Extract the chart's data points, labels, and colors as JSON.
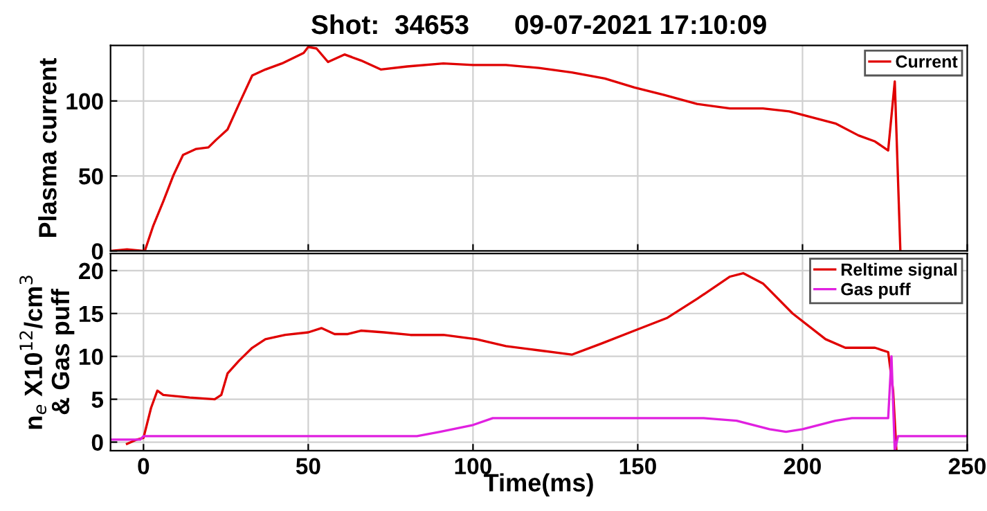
{
  "chart_data": [
    {
      "type": "line",
      "title": "Shot:  34653      09-07-2021 17:10:09",
      "ylabel": "Plasma current",
      "xlim": [
        -10,
        250
      ],
      "xticks": [
        0,
        50,
        100,
        150,
        200,
        250
      ],
      "ylim": [
        0,
        137
      ],
      "yticks": [
        0,
        50,
        100
      ],
      "grid": true,
      "legend": "top right",
      "tick_labels": "y",
      "series": [
        {
          "name": "Current",
          "color": "#e00000",
          "x": [
            -10,
            -5,
            0,
            0.4,
            3,
            6,
            9,
            12,
            16,
            19.7,
            22,
            25.5,
            29,
            33,
            37,
            42,
            48.6,
            50,
            52.5,
            56,
            61,
            66,
            72,
            80,
            91,
            100,
            110,
            120,
            130,
            140,
            149,
            158,
            168,
            178,
            188,
            196,
            203,
            210,
            217,
            222,
            226,
            228,
            229.7
          ],
          "values": [
            0,
            1,
            0,
            0,
            17,
            33,
            50,
            64,
            68,
            69,
            74,
            81,
            98,
            117,
            121,
            125,
            132,
            136,
            135,
            126,
            131,
            127,
            121,
            123,
            125,
            124,
            124,
            122,
            119,
            115,
            109,
            104,
            98,
            95,
            95,
            93,
            89,
            85,
            77,
            73,
            67,
            113,
            0
          ]
        }
      ]
    },
    {
      "type": "line",
      "xlabel": "Time(ms)",
      "ylabel": "n$_{e}$ X10$^{12}$/cm$^{3}$\n& Gas puff",
      "xlim": [
        -10,
        250
      ],
      "xticks": [
        0,
        50,
        100,
        150,
        200,
        250
      ],
      "ylim": [
        -1,
        22
      ],
      "yticks": [
        0,
        5,
        10,
        15,
        20
      ],
      "grid": true,
      "legend": "top right",
      "series": [
        {
          "name": "Reltime signal",
          "color": "#e00000",
          "x": [
            -5,
            -2,
            0,
            2.3,
            4.2,
            6,
            14,
            21.6,
            23.6,
            25.5,
            29,
            33,
            37,
            43,
            50,
            54,
            58,
            62,
            66,
            73,
            81,
            91,
            101,
            110,
            120,
            130,
            139,
            149,
            159,
            168,
            178,
            182,
            188,
            197,
            207,
            213,
            222,
            226,
            227.5,
            228.5
          ],
          "values": [
            -0.2,
            0.3,
            0.5,
            4,
            6,
            5.5,
            5.2,
            5,
            5.5,
            8,
            9.5,
            11,
            12,
            12.5,
            12.8,
            13.3,
            12.6,
            12.6,
            13,
            12.8,
            12.5,
            12.5,
            12,
            11.2,
            10.7,
            10.2,
            11.5,
            13,
            14.5,
            16.7,
            19.3,
            19.7,
            18.5,
            15,
            12,
            11,
            11,
            10.5,
            6,
            -1
          ]
        },
        {
          "name": "Gas puff",
          "color": "#e020e0",
          "x": [
            -10,
            -1,
            0,
            83,
            90,
            100,
            106,
            170,
            180,
            190,
            195,
            200,
            210,
            215,
            226,
            227,
            228,
            229,
            250
          ],
          "values": [
            0.3,
            0.3,
            0.7,
            0.7,
            1.2,
            2,
            2.8,
            2.8,
            2.5,
            1.5,
            1.2,
            1.5,
            2.5,
            2.8,
            2.8,
            10,
            -1,
            0.7,
            0.7
          ]
        }
      ]
    }
  ]
}
